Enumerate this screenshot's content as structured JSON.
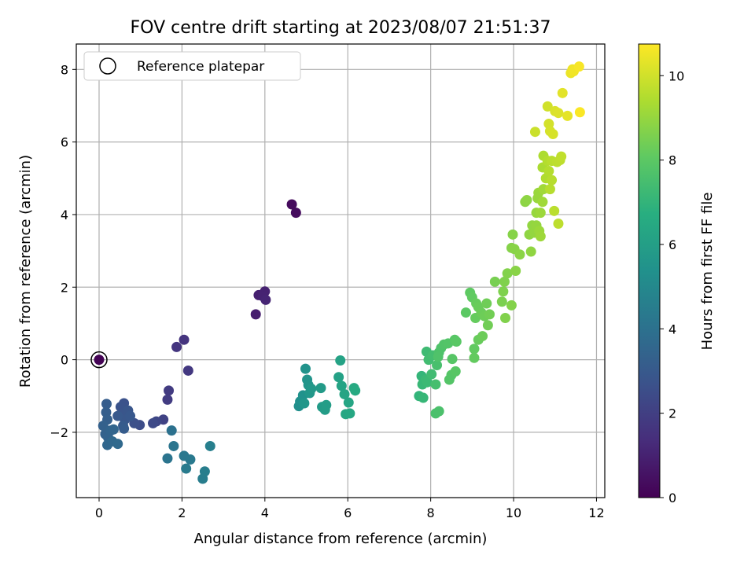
{
  "chart_data": {
    "type": "scatter",
    "title": "FOV centre drift starting at 2023/08/07 21:51:37",
    "xlabel": "Angular distance from reference (arcmin)",
    "ylabel": "Rotation from reference (arcmin)",
    "xlim": [
      -0.55,
      12.2
    ],
    "ylim": [
      -3.8,
      8.7
    ],
    "xticks": [
      0,
      2,
      4,
      6,
      8,
      10,
      12
    ],
    "yticks": [
      -2,
      0,
      2,
      4,
      6,
      8
    ],
    "grid": true,
    "colormap": "viridis",
    "colorbar": {
      "label": "Hours from first FF file",
      "range": [
        0,
        10.75
      ],
      "ticks": [
        0,
        2,
        4,
        6,
        8,
        10
      ]
    },
    "legend": {
      "entries": [
        "Reference platepar"
      ],
      "position": "top-left"
    },
    "reference_point": {
      "x": 0.0,
      "y": 0.0
    },
    "points": [
      {
        "x": 0.0,
        "y": 0.0,
        "c": 0.05
      },
      {
        "x": 4.65,
        "y": 4.28,
        "c": 0.3
      },
      {
        "x": 4.75,
        "y": 4.05,
        "c": 0.35
      },
      {
        "x": 3.78,
        "y": 1.25,
        "c": 0.9
      },
      {
        "x": 3.85,
        "y": 1.78,
        "c": 0.95
      },
      {
        "x": 4.0,
        "y": 1.88,
        "c": 1.0
      },
      {
        "x": 3.95,
        "y": 1.75,
        "c": 1.05
      },
      {
        "x": 4.02,
        "y": 1.65,
        "c": 1.1
      },
      {
        "x": 2.05,
        "y": 0.55,
        "c": 1.6
      },
      {
        "x": 1.87,
        "y": 0.35,
        "c": 1.65
      },
      {
        "x": 2.15,
        "y": -0.3,
        "c": 1.75
      },
      {
        "x": 1.68,
        "y": -0.85,
        "c": 1.85
      },
      {
        "x": 1.65,
        "y": -1.1,
        "c": 1.9
      },
      {
        "x": 1.55,
        "y": -1.65,
        "c": 2.1
      },
      {
        "x": 1.38,
        "y": -1.7,
        "c": 2.3
      },
      {
        "x": 1.3,
        "y": -1.75,
        "c": 2.4
      },
      {
        "x": 0.98,
        "y": -1.8,
        "c": 2.5
      },
      {
        "x": 0.85,
        "y": -1.75,
        "c": 2.6
      },
      {
        "x": 0.6,
        "y": -1.2,
        "c": 2.7
      },
      {
        "x": 0.52,
        "y": -1.3,
        "c": 2.75
      },
      {
        "x": 0.55,
        "y": -1.5,
        "c": 2.8
      },
      {
        "x": 0.7,
        "y": -1.4,
        "c": 2.85
      },
      {
        "x": 0.62,
        "y": -1.65,
        "c": 2.9
      },
      {
        "x": 0.75,
        "y": -1.55,
        "c": 2.95
      },
      {
        "x": 0.45,
        "y": -1.55,
        "c": 3.0
      },
      {
        "x": 0.58,
        "y": -1.82,
        "c": 3.05
      },
      {
        "x": 0.6,
        "y": -1.9,
        "c": 3.1
      },
      {
        "x": 0.18,
        "y": -1.22,
        "c": 3.15
      },
      {
        "x": 0.17,
        "y": -1.45,
        "c": 3.2
      },
      {
        "x": 0.2,
        "y": -1.65,
        "c": 3.25
      },
      {
        "x": 0.1,
        "y": -1.82,
        "c": 3.3
      },
      {
        "x": 0.15,
        "y": -2.05,
        "c": 3.35
      },
      {
        "x": 0.22,
        "y": -2.15,
        "c": 3.4
      },
      {
        "x": 0.28,
        "y": -1.95,
        "c": 3.45
      },
      {
        "x": 0.35,
        "y": -1.92,
        "c": 3.5
      },
      {
        "x": 0.2,
        "y": -2.35,
        "c": 3.55
      },
      {
        "x": 0.32,
        "y": -2.25,
        "c": 3.6
      },
      {
        "x": 0.45,
        "y": -2.32,
        "c": 3.65
      },
      {
        "x": 1.75,
        "y": -1.95,
        "c": 4.0
      },
      {
        "x": 1.65,
        "y": -2.72,
        "c": 4.1
      },
      {
        "x": 1.8,
        "y": -2.38,
        "c": 4.15
      },
      {
        "x": 2.05,
        "y": -2.65,
        "c": 4.3
      },
      {
        "x": 2.2,
        "y": -2.75,
        "c": 4.35
      },
      {
        "x": 2.1,
        "y": -3.0,
        "c": 4.4
      },
      {
        "x": 2.5,
        "y": -3.28,
        "c": 4.5
      },
      {
        "x": 2.55,
        "y": -3.08,
        "c": 4.55
      },
      {
        "x": 2.68,
        "y": -2.38,
        "c": 4.6
      },
      {
        "x": 4.82,
        "y": -1.28,
        "c": 5.3
      },
      {
        "x": 4.85,
        "y": -1.15,
        "c": 5.35
      },
      {
        "x": 4.92,
        "y": -0.98,
        "c": 5.4
      },
      {
        "x": 4.98,
        "y": -0.25,
        "c": 5.45
      },
      {
        "x": 5.02,
        "y": -0.55,
        "c": 5.5
      },
      {
        "x": 5.05,
        "y": -0.7,
        "c": 5.55
      },
      {
        "x": 4.95,
        "y": -1.2,
        "c": 5.6
      },
      {
        "x": 5.08,
        "y": -0.92,
        "c": 5.65
      },
      {
        "x": 5.12,
        "y": -0.8,
        "c": 5.7
      },
      {
        "x": 5.35,
        "y": -0.78,
        "c": 5.8
      },
      {
        "x": 5.38,
        "y": -1.3,
        "c": 5.85
      },
      {
        "x": 5.45,
        "y": -1.38,
        "c": 5.9
      },
      {
        "x": 5.48,
        "y": -1.25,
        "c": 5.95
      },
      {
        "x": 5.78,
        "y": -0.48,
        "c": 6.1
      },
      {
        "x": 5.82,
        "y": -0.02,
        "c": 6.15
      },
      {
        "x": 5.85,
        "y": -0.72,
        "c": 6.2
      },
      {
        "x": 5.92,
        "y": -0.95,
        "c": 6.25
      },
      {
        "x": 6.02,
        "y": -1.18,
        "c": 6.3
      },
      {
        "x": 5.95,
        "y": -1.5,
        "c": 6.35
      },
      {
        "x": 6.05,
        "y": -1.48,
        "c": 6.4
      },
      {
        "x": 6.15,
        "y": -0.78,
        "c": 6.5
      },
      {
        "x": 6.18,
        "y": -0.85,
        "c": 6.55
      },
      {
        "x": 7.72,
        "y": -1.0,
        "c": 7.0
      },
      {
        "x": 7.78,
        "y": -0.45,
        "c": 7.05
      },
      {
        "x": 7.82,
        "y": -1.05,
        "c": 7.1
      },
      {
        "x": 7.8,
        "y": -0.68,
        "c": 7.15
      },
      {
        "x": 7.88,
        "y": -0.55,
        "c": 7.2
      },
      {
        "x": 7.92,
        "y": -0.62,
        "c": 7.25
      },
      {
        "x": 7.9,
        "y": 0.22,
        "c": 7.3
      },
      {
        "x": 8.02,
        "y": -0.4,
        "c": 7.35
      },
      {
        "x": 7.95,
        "y": 0.0,
        "c": 7.4
      },
      {
        "x": 8.05,
        "y": 0.12,
        "c": 7.45
      },
      {
        "x": 8.12,
        "y": -0.68,
        "c": 7.5
      },
      {
        "x": 8.15,
        "y": -0.15,
        "c": 7.55
      },
      {
        "x": 8.12,
        "y": -1.48,
        "c": 7.6
      },
      {
        "x": 8.2,
        "y": -1.42,
        "c": 7.62
      },
      {
        "x": 8.2,
        "y": 0.2,
        "c": 7.65
      },
      {
        "x": 8.25,
        "y": 0.32,
        "c": 7.7
      },
      {
        "x": 8.18,
        "y": 0.08,
        "c": 7.72
      },
      {
        "x": 8.32,
        "y": 0.42,
        "c": 7.75
      },
      {
        "x": 8.42,
        "y": 0.45,
        "c": 7.8
      },
      {
        "x": 8.45,
        "y": -0.55,
        "c": 7.82
      },
      {
        "x": 8.5,
        "y": -0.42,
        "c": 7.85
      },
      {
        "x": 8.52,
        "y": 0.02,
        "c": 7.88
      },
      {
        "x": 8.58,
        "y": 0.55,
        "c": 7.9
      },
      {
        "x": 8.6,
        "y": -0.32,
        "c": 7.92
      },
      {
        "x": 8.62,
        "y": 0.5,
        "c": 7.95
      },
      {
        "x": 8.85,
        "y": 1.3,
        "c": 8.0
      },
      {
        "x": 8.95,
        "y": 1.85,
        "c": 8.05
      },
      {
        "x": 9.0,
        "y": 1.72,
        "c": 8.1
      },
      {
        "x": 9.05,
        "y": 0.3,
        "c": 8.12
      },
      {
        "x": 9.05,
        "y": 0.05,
        "c": 8.15
      },
      {
        "x": 9.08,
        "y": 1.15,
        "c": 8.18
      },
      {
        "x": 9.1,
        "y": 1.55,
        "c": 8.2
      },
      {
        "x": 9.15,
        "y": 0.55,
        "c": 8.22
      },
      {
        "x": 9.15,
        "y": 1.45,
        "c": 8.25
      },
      {
        "x": 9.22,
        "y": 1.3,
        "c": 8.28
      },
      {
        "x": 9.25,
        "y": 0.65,
        "c": 8.3
      },
      {
        "x": 9.3,
        "y": 1.2,
        "c": 8.32
      },
      {
        "x": 9.35,
        "y": 1.55,
        "c": 8.35
      },
      {
        "x": 9.38,
        "y": 0.95,
        "c": 8.38
      },
      {
        "x": 9.42,
        "y": 1.25,
        "c": 8.4
      },
      {
        "x": 9.55,
        "y": 2.15,
        "c": 8.5
      },
      {
        "x": 9.72,
        "y": 1.6,
        "c": 8.55
      },
      {
        "x": 9.75,
        "y": 1.88,
        "c": 8.6
      },
      {
        "x": 9.78,
        "y": 2.15,
        "c": 8.62
      },
      {
        "x": 9.8,
        "y": 1.15,
        "c": 8.65
      },
      {
        "x": 9.85,
        "y": 2.38,
        "c": 8.68
      },
      {
        "x": 9.95,
        "y": 1.5,
        "c": 8.7
      },
      {
        "x": 9.95,
        "y": 3.08,
        "c": 8.72
      },
      {
        "x": 9.98,
        "y": 3.45,
        "c": 8.75
      },
      {
        "x": 10.02,
        "y": 3.05,
        "c": 8.78
      },
      {
        "x": 10.05,
        "y": 2.45,
        "c": 8.8
      },
      {
        "x": 10.15,
        "y": 2.9,
        "c": 8.82
      },
      {
        "x": 10.28,
        "y": 4.35,
        "c": 8.85
      },
      {
        "x": 10.32,
        "y": 4.4,
        "c": 8.88
      },
      {
        "x": 10.38,
        "y": 3.45,
        "c": 8.9
      },
      {
        "x": 10.42,
        "y": 2.98,
        "c": 8.92
      },
      {
        "x": 10.45,
        "y": 3.7,
        "c": 8.95
      },
      {
        "x": 10.5,
        "y": 3.5,
        "c": 8.98
      },
      {
        "x": 10.55,
        "y": 3.7,
        "c": 9.0
      },
      {
        "x": 10.55,
        "y": 4.05,
        "c": 9.02
      },
      {
        "x": 10.58,
        "y": 4.45,
        "c": 9.05
      },
      {
        "x": 10.6,
        "y": 4.6,
        "c": 9.08
      },
      {
        "x": 10.62,
        "y": 3.55,
        "c": 9.1
      },
      {
        "x": 10.65,
        "y": 4.05,
        "c": 9.12
      },
      {
        "x": 10.65,
        "y": 3.4,
        "c": 9.15
      },
      {
        "x": 10.7,
        "y": 4.35,
        "c": 9.18
      },
      {
        "x": 10.72,
        "y": 4.7,
        "c": 9.2
      },
      {
        "x": 10.7,
        "y": 5.3,
        "c": 9.35
      },
      {
        "x": 10.72,
        "y": 5.62,
        "c": 9.4
      },
      {
        "x": 10.78,
        "y": 5.0,
        "c": 9.45
      },
      {
        "x": 10.82,
        "y": 5.48,
        "c": 9.5
      },
      {
        "x": 10.85,
        "y": 5.2,
        "c": 9.52
      },
      {
        "x": 10.88,
        "y": 4.7,
        "c": 9.55
      },
      {
        "x": 10.92,
        "y": 4.95,
        "c": 9.58
      },
      {
        "x": 10.92,
        "y": 5.48,
        "c": 9.6
      },
      {
        "x": 10.98,
        "y": 4.1,
        "c": 9.62
      },
      {
        "x": 11.05,
        "y": 5.45,
        "c": 9.65
      },
      {
        "x": 11.08,
        "y": 3.75,
        "c": 9.68
      },
      {
        "x": 11.12,
        "y": 5.5,
        "c": 9.7
      },
      {
        "x": 11.15,
        "y": 5.6,
        "c": 9.72
      },
      {
        "x": 10.52,
        "y": 6.28,
        "c": 9.9
      },
      {
        "x": 10.82,
        "y": 6.98,
        "c": 10.0
      },
      {
        "x": 10.85,
        "y": 6.5,
        "c": 10.05
      },
      {
        "x": 10.88,
        "y": 6.3,
        "c": 10.08
      },
      {
        "x": 10.95,
        "y": 6.22,
        "c": 10.1
      },
      {
        "x": 11.0,
        "y": 6.85,
        "c": 10.15
      },
      {
        "x": 11.08,
        "y": 6.8,
        "c": 10.2
      },
      {
        "x": 11.18,
        "y": 7.35,
        "c": 10.3
      },
      {
        "x": 11.3,
        "y": 6.72,
        "c": 10.35
      },
      {
        "x": 11.38,
        "y": 7.9,
        "c": 10.45
      },
      {
        "x": 11.42,
        "y": 8.0,
        "c": 10.5
      },
      {
        "x": 11.45,
        "y": 7.95,
        "c": 10.55
      },
      {
        "x": 11.58,
        "y": 8.08,
        "c": 10.65
      },
      {
        "x": 11.6,
        "y": 6.82,
        "c": 10.7
      }
    ]
  }
}
